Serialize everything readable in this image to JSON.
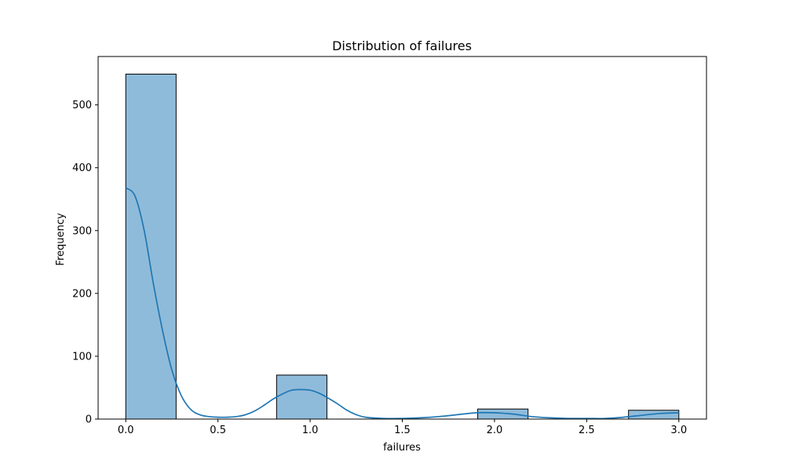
{
  "chart_data": {
    "type": "bar",
    "title": "Distribution of failures",
    "xlabel": "failures",
    "ylabel": "Frequency",
    "xlim": [
      -0.15,
      3.15
    ],
    "ylim": [
      0,
      577
    ],
    "xticks": [
      0.0,
      0.5,
      1.0,
      1.5,
      2.0,
      2.5,
      3.0
    ],
    "xtick_labels": [
      "0.0",
      "0.5",
      "1.0",
      "1.5",
      "2.0",
      "2.5",
      "3.0"
    ],
    "yticks": [
      0,
      100,
      200,
      300,
      400,
      500
    ],
    "ytick_labels": [
      "0",
      "100",
      "200",
      "300",
      "400",
      "500"
    ],
    "bins": [
      {
        "x0": 0.0,
        "x1": 0.273,
        "count": 549
      },
      {
        "x0": 0.818,
        "x1": 1.091,
        "count": 70
      },
      {
        "x0": 1.909,
        "x1": 2.182,
        "count": 16
      },
      {
        "x0": 2.727,
        "x1": 3.0,
        "count": 14
      }
    ],
    "kde": {
      "x": [
        0.0,
        0.05,
        0.1,
        0.15,
        0.2,
        0.25,
        0.3,
        0.35,
        0.4,
        0.45,
        0.5,
        0.55,
        0.6,
        0.65,
        0.7,
        0.75,
        0.8,
        0.85,
        0.9,
        0.95,
        1.0,
        1.05,
        1.1,
        1.15,
        1.2,
        1.25,
        1.3,
        1.4,
        1.5,
        1.6,
        1.7,
        1.8,
        1.9,
        2.0,
        2.1,
        2.2,
        2.3,
        2.4,
        2.5,
        2.6,
        2.7,
        2.8,
        2.9,
        3.0
      ],
      "y": [
        368,
        355,
        300,
        215,
        140,
        78,
        38,
        16,
        7,
        4,
        3,
        3,
        4,
        7,
        13,
        22,
        32,
        40,
        46,
        47,
        46,
        41,
        33,
        24,
        14,
        7,
        3,
        1,
        1,
        2,
        4,
        7,
        10,
        10,
        8,
        4,
        2,
        1,
        1,
        1,
        3,
        6,
        9,
        10
      ]
    },
    "colors": {
      "bar_fill": "#8fbbda",
      "bar_edge": "#000000",
      "kde_line": "#1f77b4"
    },
    "grid": false,
    "legend": false
  }
}
